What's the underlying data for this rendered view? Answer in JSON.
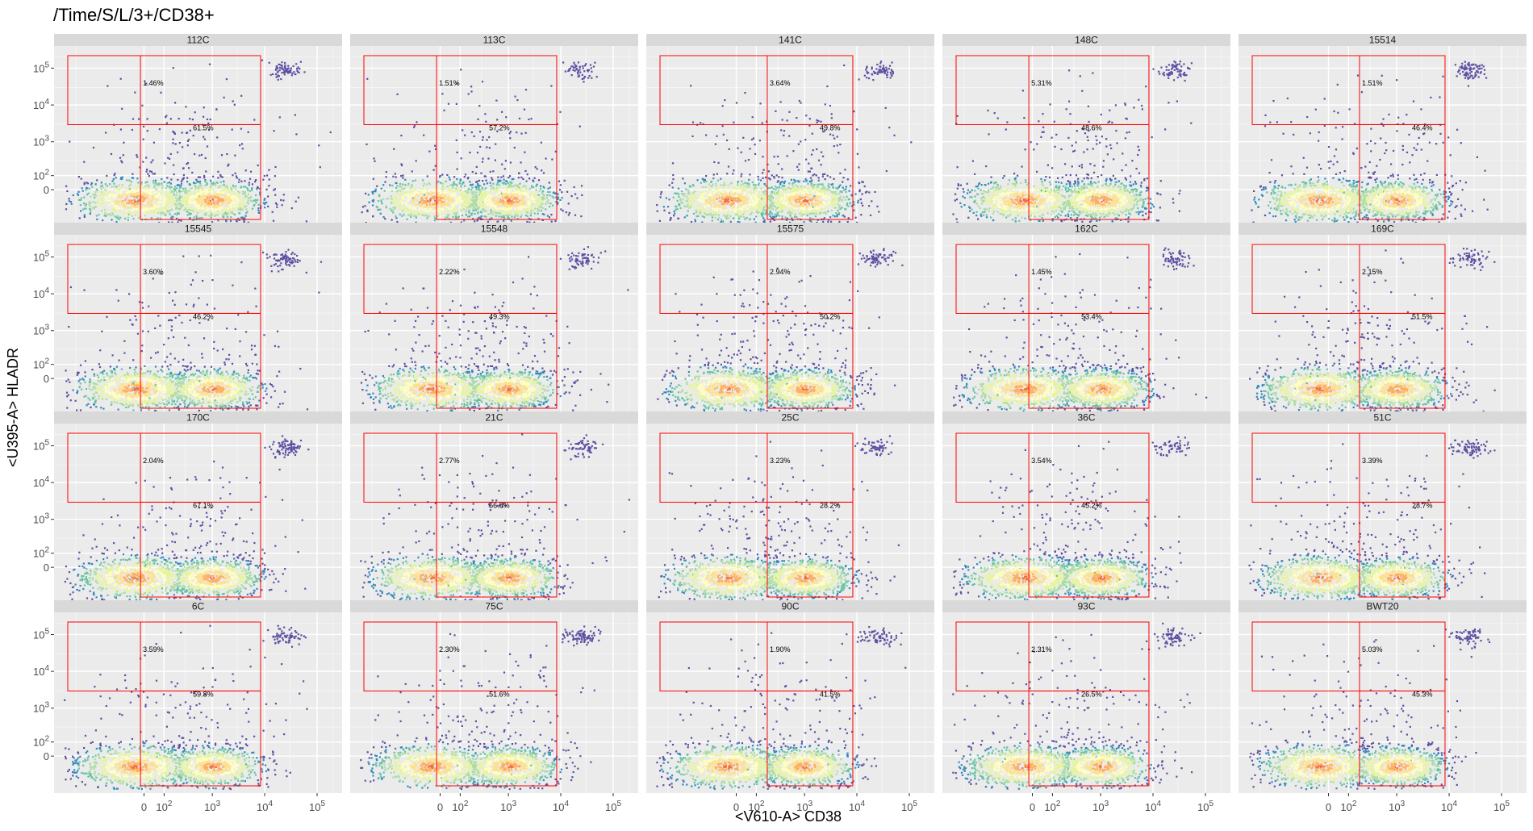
{
  "chart_data": {
    "type": "heatmap",
    "title": "/Time/S/L/3+/CD38+",
    "xlabel": "<V610-A> CD38",
    "ylabel": "<U395-A> HLADR",
    "x_ticks": [
      "0",
      "10^2",
      "10^3",
      "10^4",
      "10^5"
    ],
    "y_ticks": [
      "0",
      "10^2",
      "10^3",
      "10^4",
      "10^5"
    ],
    "panel_bg": "#ebebeb",
    "strip_bg": "#d9d9d9",
    "gate_color": "#ff0000",
    "density_palette": [
      "#5e4fa2",
      "#3288bd",
      "#66c2a5",
      "#abdda4",
      "#e6f598",
      "#ffffbf",
      "#fee08b",
      "#fdae61",
      "#f46d43",
      "#d53e4f"
    ],
    "grid": true,
    "layout": {
      "rows": 4,
      "cols": 5
    },
    "panels": [
      {
        "name": "112C",
        "upper_pct": "1.46%",
        "lower_pct": "61.5%"
      },
      {
        "name": "113C",
        "upper_pct": "1.51%",
        "lower_pct": "57.2%"
      },
      {
        "name": "141C",
        "upper_pct": "3.64%",
        "lower_pct": "49.8%"
      },
      {
        "name": "148C",
        "upper_pct": "5.31%",
        "lower_pct": "48.6%"
      },
      {
        "name": "15514",
        "upper_pct": "1.51%",
        "lower_pct": "46.4%"
      },
      {
        "name": "15545",
        "upper_pct": "3.60%",
        "lower_pct": "46.2%"
      },
      {
        "name": "15548",
        "upper_pct": "2.22%",
        "lower_pct": "49.3%"
      },
      {
        "name": "15575",
        "upper_pct": "2.94%",
        "lower_pct": "50.2%"
      },
      {
        "name": "162C",
        "upper_pct": "1.45%",
        "lower_pct": "53.4%"
      },
      {
        "name": "169C",
        "upper_pct": "2.15%",
        "lower_pct": "51.5%"
      },
      {
        "name": "170C",
        "upper_pct": "2.04%",
        "lower_pct": "67.1%"
      },
      {
        "name": "21C",
        "upper_pct": "2.77%",
        "lower_pct": "56.8%"
      },
      {
        "name": "25C",
        "upper_pct": "3.23%",
        "lower_pct": "28.2%"
      },
      {
        "name": "36C",
        "upper_pct": "3.54%",
        "lower_pct": "45.2%"
      },
      {
        "name": "51C",
        "upper_pct": "3.39%",
        "lower_pct": "28.7%"
      },
      {
        "name": "6C",
        "upper_pct": "3.59%",
        "lower_pct": "59.8%"
      },
      {
        "name": "75C",
        "upper_pct": "2.30%",
        "lower_pct": "51.6%"
      },
      {
        "name": "90C",
        "upper_pct": "1.90%",
        "lower_pct": "41.5%"
      },
      {
        "name": "93C",
        "upper_pct": "2.31%",
        "lower_pct": "26.5%"
      },
      {
        "name": "BWT20",
        "upper_pct": "5.03%",
        "lower_pct": "45.3%"
      }
    ]
  }
}
